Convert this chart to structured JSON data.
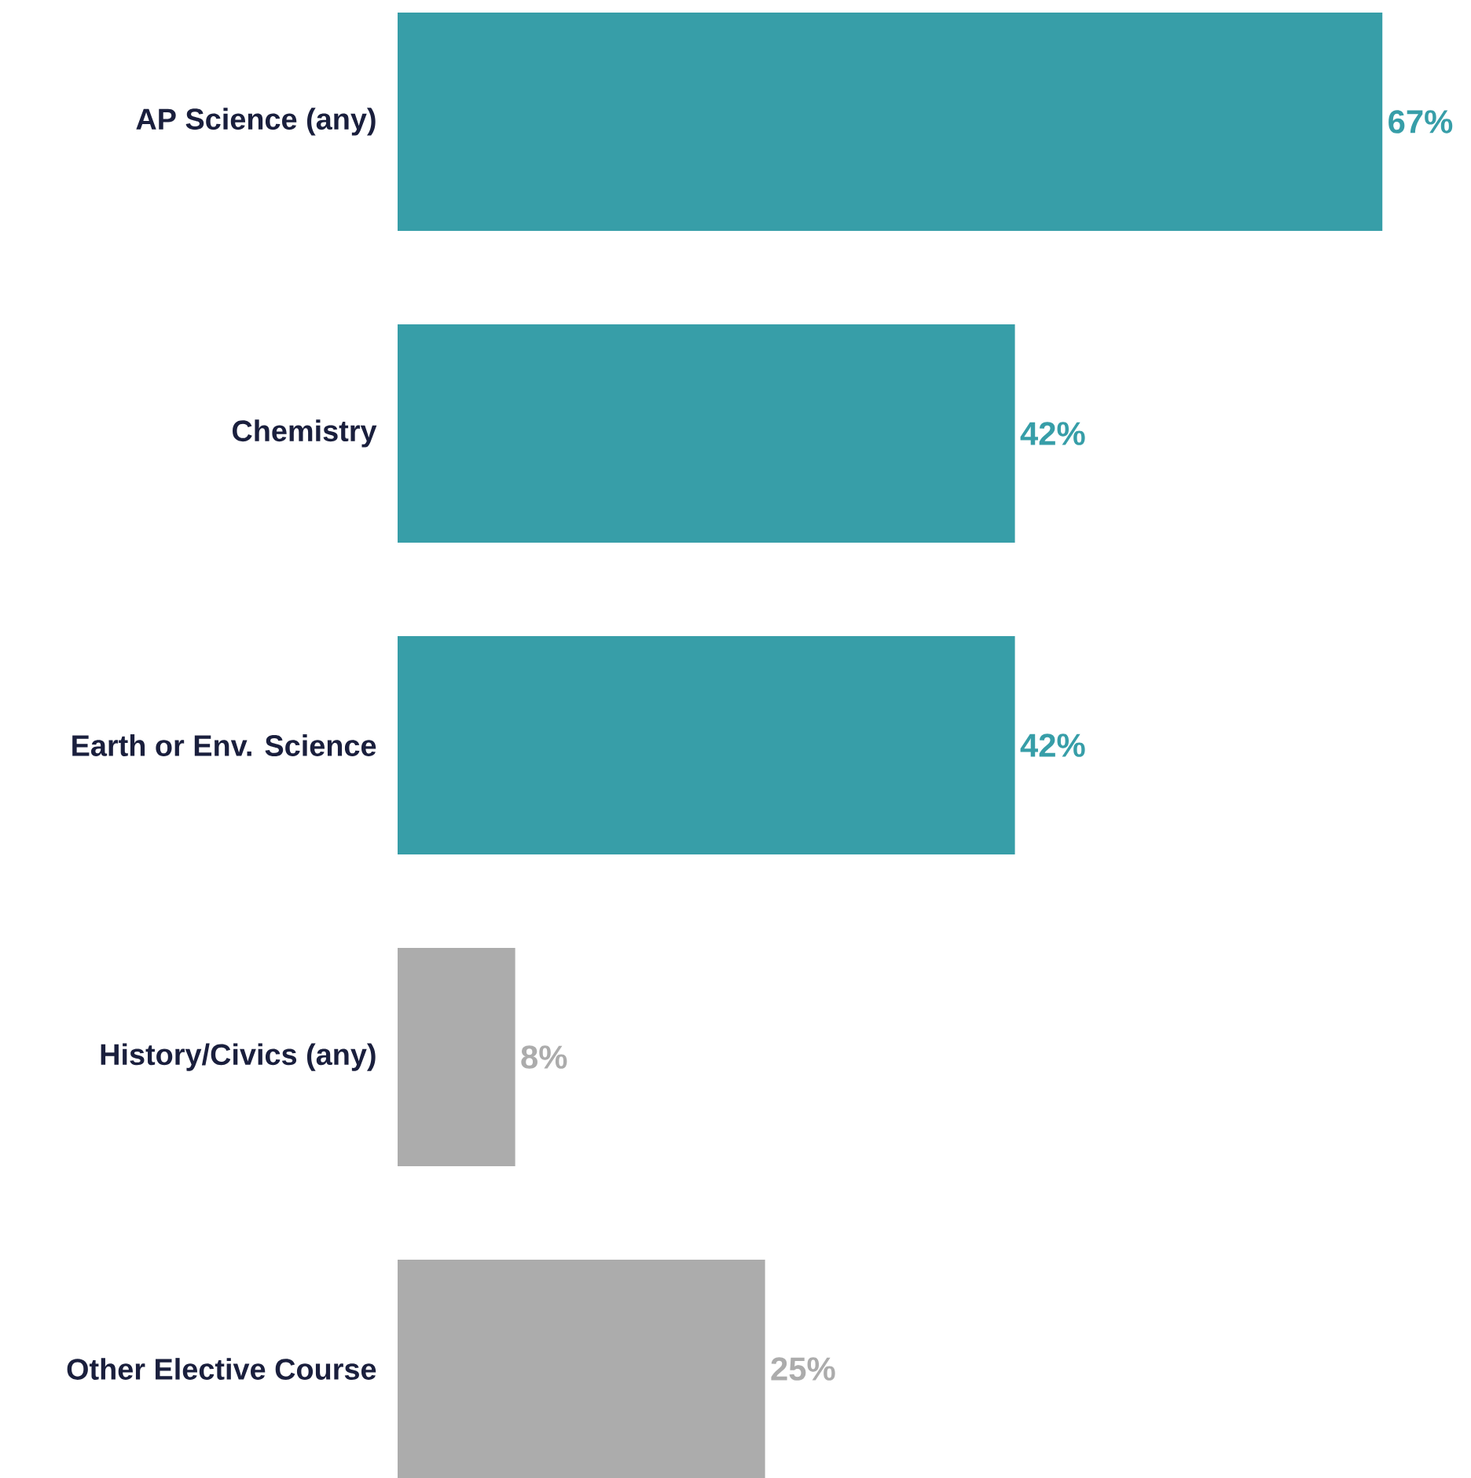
{
  "chart_data": {
    "type": "bar",
    "orientation": "horizontal",
    "categories": [
      "AP Science (any)",
      "Chemistry",
      "Earth or Env. Science",
      "History/Civics (any)",
      "Other Elective Course"
    ],
    "values": [
      67,
      42,
      42,
      8,
      25
    ],
    "value_labels": [
      "67%",
      "42%",
      "42%",
      "8%",
      "25%"
    ],
    "colors": [
      "#379ea8",
      "#379ea8",
      "#379ea8",
      "#acacac",
      "#acacac"
    ]
  }
}
